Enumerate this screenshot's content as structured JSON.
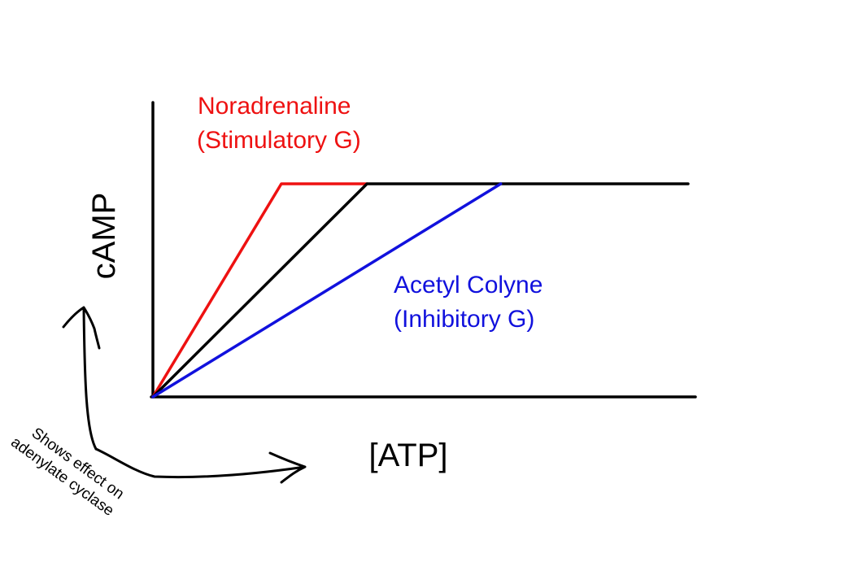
{
  "chart_data": {
    "type": "line",
    "xlabel": "[ATP]",
    "ylabel": "cAMP",
    "grid": false,
    "colors": {
      "axis": "#000000",
      "stimulatory": "#ee1111",
      "baseline": "#000000",
      "inhibitory": "#1111dd"
    },
    "series": [
      {
        "key": "stimulatory",
        "color": "#ee1111",
        "x": [
          0,
          0.24,
          0.4
        ],
        "y": [
          0,
          1,
          1
        ]
      },
      {
        "key": "baseline",
        "color": "#000000",
        "x": [
          0,
          0.4,
          1.0
        ],
        "y": [
          0,
          1,
          1
        ]
      },
      {
        "key": "inhibitory",
        "color": "#1111dd",
        "x": [
          0,
          0.65
        ],
        "y": [
          0,
          1
        ]
      }
    ],
    "annotations": [
      {
        "key": "stimulatory",
        "color": "#ee1111",
        "lines": [
          "Noradrenaline",
          "(Stimulatory G)"
        ]
      },
      {
        "key": "inhibitory",
        "color": "#1111dd",
        "lines": [
          "Acetyl Colyne",
          "(Inhibitory G)"
        ]
      }
    ],
    "note": {
      "lines": [
        "Shows effect on",
        "adenylate cyclase"
      ]
    }
  }
}
